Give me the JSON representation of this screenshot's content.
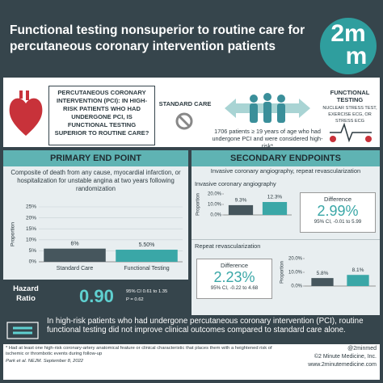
{
  "header": {
    "title": "Functional testing nonsuperior to routine care for percutaneous coronary intervention patients",
    "logo_top": "2m",
    "logo_bottom": "m"
  },
  "intro": {
    "question": "PERCUTANEOUS CORONARY INTERVENTION (PCI): IN HIGH-RISK PATIENTS WHO HAD UNDERGONE PCI, IS FUNCTIONAL TESTING SUPERIOR TO ROUTINE CARE?",
    "standard_care": "STANDARD CARE",
    "functional_testing": "FUNCTIONAL TESTING",
    "functional_testing_detail": "NUCLEAR STRESS TEST, EXERCISE ECG, OR STRESS ECG",
    "population": "1706 patients ≥ 19 years of age who had undergone PCI and were considered high-risk*"
  },
  "primary": {
    "heading": "PRIMARY END POINT",
    "description": "Composite of death from any cause, myocardial infarction, or hospitalization for unstable angina at two years following randomization",
    "chart": {
      "type": "bar",
      "ylabel": "Proportion",
      "categories": [
        "Standard Care",
        "Functional Testing"
      ],
      "values": [
        6,
        5.5
      ],
      "value_labels": [
        "6%",
        "5.50%"
      ],
      "colors": [
        "#46565d",
        "#3aa7a7"
      ],
      "ylim": [
        0,
        25
      ],
      "yticks": [
        {
          "value": 0,
          "label": "0%"
        },
        {
          "value": 5,
          "label": "5%"
        },
        {
          "value": 10,
          "label": "10%"
        },
        {
          "value": 15,
          "label": "15%"
        },
        {
          "value": 20,
          "label": "20%"
        },
        {
          "value": 25,
          "label": "25%"
        }
      ],
      "grid": true
    },
    "hazard_label": "Hazard Ratio",
    "hazard_value": "0.90",
    "ci": "95% CI 0.61 to 1.35",
    "p": "P = 0.62"
  },
  "secondary": {
    "heading": "SECONDARY ENDPOINTS",
    "description": "Invasive coronary angiography, repeat revascularization",
    "angiography": {
      "title": "Invasive coronary angiography",
      "chart": {
        "type": "bar",
        "ylabel": "Proportion",
        "categories": [
          "Standard Care",
          "Functional Testing"
        ],
        "values": [
          9.3,
          12.3
        ],
        "value_labels": [
          "9.3%",
          "12.3%"
        ],
        "colors": [
          "#46565d",
          "#3aa7a7"
        ],
        "ylim": [
          0,
          20
        ],
        "yticks": [
          {
            "value": 0,
            "label": "0.0%"
          },
          {
            "value": 10,
            "label": "10.0%"
          },
          {
            "value": 20,
            "label": "20.0%"
          }
        ]
      },
      "difference_label": "Difference",
      "difference": "2.99%",
      "ci": "95% CI, -0.01 to 5.99"
    },
    "revascularization": {
      "title": "Repeat revascularization",
      "chart": {
        "type": "bar",
        "ylabel": "Proportion",
        "categories": [
          "Standard Care",
          "Functional Testing"
        ],
        "values": [
          5.8,
          8.1
        ],
        "value_labels": [
          "5.8%",
          "8.1%"
        ],
        "colors": [
          "#46565d",
          "#3aa7a7"
        ],
        "ylim": [
          0,
          20
        ],
        "yticks": [
          {
            "value": 0,
            "label": "0.0%"
          },
          {
            "value": 10,
            "label": "10.0%"
          },
          {
            "value": 20,
            "label": "20.0%"
          }
        ]
      },
      "difference_label": "Difference",
      "difference": "2.23%",
      "ci": "95% CI, -0.22 to 4.68"
    }
  },
  "conclusion": "In high-risk patients who had undergone percutaneous coronary intervention (PCI), routine functional testing did not improve clinical outcomes compared to standard care alone.",
  "footer": {
    "footnote": "* Had at least one high-risk coronary-artery anatomical feature or clinical characteristic that places them with a heightened risk of ischemic or thrombotic events during follow-up",
    "citation": "Park et al. NEJM. September 8, 2022",
    "handle": "@2minmed",
    "copyright": "©2 Minute Medicine, Inc.",
    "website": "www.2minutemedicine.com"
  }
}
